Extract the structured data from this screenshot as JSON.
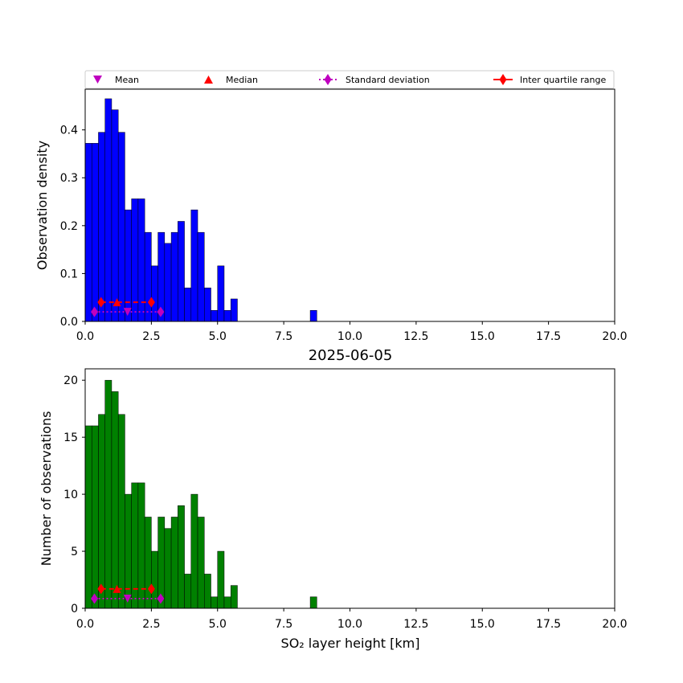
{
  "legend": {
    "items": [
      {
        "label": "Mean",
        "marker": "triangle-down",
        "color": "#bf00bf"
      },
      {
        "label": "Median",
        "marker": "triangle-up",
        "color": "#ff0000"
      },
      {
        "label": "Standard deviation",
        "marker": "diamond",
        "color": "#bf00bf",
        "line": "dotted"
      },
      {
        "label": "Inter quartile range",
        "marker": "diamond",
        "color": "#ff0000",
        "line": "solid"
      }
    ]
  },
  "chart_data": [
    {
      "type": "bar",
      "title": "",
      "xlabel": "",
      "ylabel": "Observation density",
      "xlim": [
        0,
        20
      ],
      "ylim": [
        0,
        0.485
      ],
      "bin_width": 0.25,
      "bar_color": "#0000ff",
      "xticks": [
        "0.0",
        "2.5",
        "5.0",
        "7.5",
        "10.0",
        "12.5",
        "15.0",
        "17.5",
        "20.0"
      ],
      "yticks": [
        "0.0",
        "0.1",
        "0.2",
        "0.3",
        "0.4"
      ],
      "bins": [
        {
          "x": 0.0,
          "value": 0.372
        },
        {
          "x": 0.25,
          "value": 0.372
        },
        {
          "x": 0.5,
          "value": 0.395
        },
        {
          "x": 0.75,
          "value": 0.465
        },
        {
          "x": 1.0,
          "value": 0.442
        },
        {
          "x": 1.25,
          "value": 0.395
        },
        {
          "x": 1.5,
          "value": 0.233
        },
        {
          "x": 1.75,
          "value": 0.256
        },
        {
          "x": 2.0,
          "value": 0.256
        },
        {
          "x": 2.25,
          "value": 0.186
        },
        {
          "x": 2.5,
          "value": 0.116
        },
        {
          "x": 2.75,
          "value": 0.186
        },
        {
          "x": 3.0,
          "value": 0.163
        },
        {
          "x": 3.25,
          "value": 0.186
        },
        {
          "x": 3.5,
          "value": 0.209
        },
        {
          "x": 3.75,
          "value": 0.07
        },
        {
          "x": 4.0,
          "value": 0.233
        },
        {
          "x": 4.25,
          "value": 0.186
        },
        {
          "x": 4.5,
          "value": 0.07
        },
        {
          "x": 4.75,
          "value": 0.023
        },
        {
          "x": 5.0,
          "value": 0.116
        },
        {
          "x": 5.25,
          "value": 0.023
        },
        {
          "x": 5.5,
          "value": 0.047
        },
        {
          "x": 8.5,
          "value": 0.023
        }
      ],
      "stats": {
        "mean": {
          "x": 1.6,
          "y": 0.02
        },
        "median": {
          "x": 1.2,
          "y": 0.04
        },
        "std_range": [
          0.35,
          2.85
        ],
        "std_y": 0.02,
        "iqr_range": [
          0.6,
          2.5
        ],
        "iqr_y": 0.04
      }
    },
    {
      "type": "bar",
      "title": "2025-06-05",
      "xlabel": "SO₂ layer height [km]",
      "ylabel": "Number of observations",
      "xlim": [
        0,
        20
      ],
      "ylim": [
        0,
        21
      ],
      "bin_width": 0.25,
      "bar_color": "#008000",
      "xticks": [
        "0.0",
        "2.5",
        "5.0",
        "7.5",
        "10.0",
        "12.5",
        "15.0",
        "17.5",
        "20.0"
      ],
      "yticks": [
        "0",
        "5",
        "10",
        "15",
        "20"
      ],
      "bins": [
        {
          "x": 0.0,
          "value": 16
        },
        {
          "x": 0.25,
          "value": 16
        },
        {
          "x": 0.5,
          "value": 17
        },
        {
          "x": 0.75,
          "value": 20
        },
        {
          "x": 1.0,
          "value": 19
        },
        {
          "x": 1.25,
          "value": 17
        },
        {
          "x": 1.5,
          "value": 10
        },
        {
          "x": 1.75,
          "value": 11
        },
        {
          "x": 2.0,
          "value": 11
        },
        {
          "x": 2.25,
          "value": 8
        },
        {
          "x": 2.5,
          "value": 5
        },
        {
          "x": 2.75,
          "value": 8
        },
        {
          "x": 3.0,
          "value": 7
        },
        {
          "x": 3.25,
          "value": 8
        },
        {
          "x": 3.5,
          "value": 9
        },
        {
          "x": 3.75,
          "value": 3
        },
        {
          "x": 4.0,
          "value": 10
        },
        {
          "x": 4.25,
          "value": 8
        },
        {
          "x": 4.5,
          "value": 3
        },
        {
          "x": 4.75,
          "value": 1
        },
        {
          "x": 5.0,
          "value": 5
        },
        {
          "x": 5.25,
          "value": 1
        },
        {
          "x": 5.5,
          "value": 2
        },
        {
          "x": 8.5,
          "value": 1
        }
      ],
      "stats": {
        "mean": {
          "x": 1.6,
          "y": 0.85
        },
        "median": {
          "x": 1.2,
          "y": 1.7
        },
        "std_range": [
          0.35,
          2.85
        ],
        "std_y": 0.85,
        "iqr_range": [
          0.6,
          2.5
        ],
        "iqr_y": 1.7
      }
    }
  ]
}
